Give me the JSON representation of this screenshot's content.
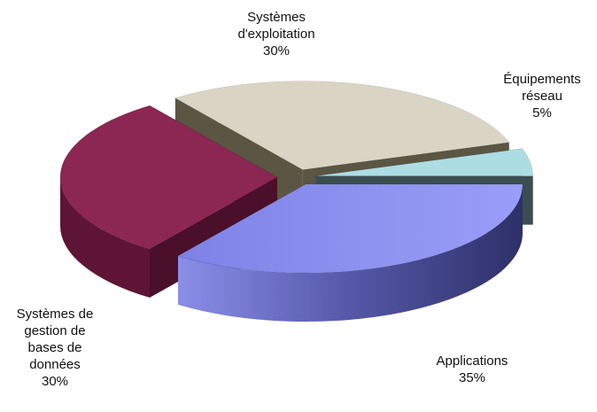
{
  "chart_data": {
    "type": "pie",
    "categories": [
      "Systèmes d'exploitation",
      "Équipements réseau",
      "Applications",
      "Systèmes de gestion de bases de données"
    ],
    "values": [
      30,
      5,
      35,
      30
    ],
    "value_labels": [
      "30%",
      "5%",
      "35%",
      "30%"
    ],
    "colors": [
      "#d9d4c4",
      "#acdde2",
      "#8c90f2",
      "#8c2652"
    ]
  }
}
